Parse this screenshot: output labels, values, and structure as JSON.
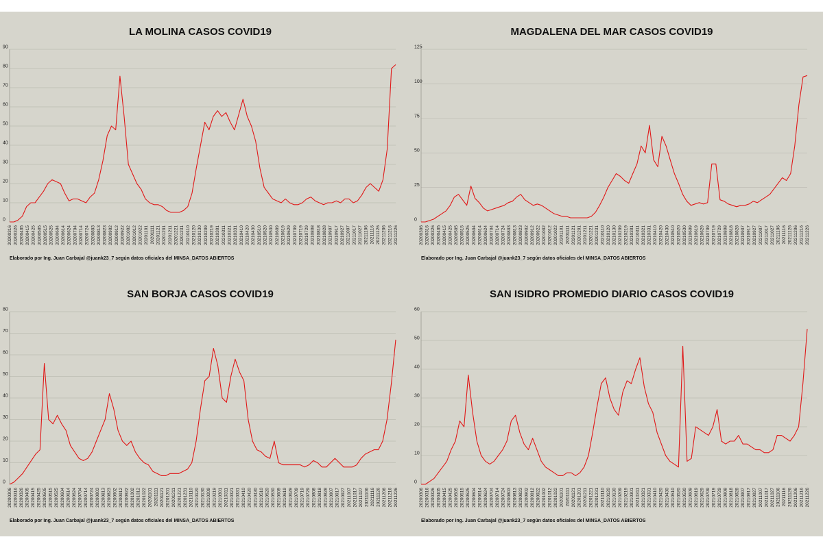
{
  "colors": {
    "background": "#d6d5cc",
    "line": "#e01818",
    "grid": "#bdbcb3"
  },
  "x_labels": [
    "20200306",
    "20200316",
    "20200326",
    "20200405",
    "20200415",
    "20200425",
    "20200505",
    "20200515",
    "20200525",
    "20200604",
    "20200614",
    "20200624",
    "20200704",
    "20200714",
    "20200724",
    "20200803",
    "20200813",
    "20200823",
    "20200902",
    "20200912",
    "20200922",
    "20201002",
    "20201012",
    "20201022",
    "20201101",
    "20201111",
    "20201121",
    "20201201",
    "20201211",
    "20201221",
    "20201231",
    "20210110",
    "20210120",
    "20210130",
    "20210209",
    "20210219",
    "20210301",
    "20210311",
    "20210321",
    "20210331",
    "20210410",
    "20210420",
    "20210430",
    "20210510",
    "20210520",
    "20210530",
    "20210609",
    "20210619",
    "20210629",
    "20210709",
    "20210719",
    "20210729",
    "20210808",
    "20210818",
    "20210828",
    "20210907",
    "20210917",
    "20210927",
    "20211007",
    "20211017",
    "20211027",
    "20211106",
    "20211116",
    "20211126",
    "20211206",
    "20211216",
    "20211226"
  ],
  "credit": "Elaborado por Ing. Juan Carbajal @juank23_7 según datos oficiales del MINSA_DATOS ABIERTOS",
  "chart_data": [
    {
      "type": "line",
      "title": "LA MOLINA CASOS COVID19",
      "ylim": [
        0,
        90
      ],
      "yticks": [
        0,
        10,
        20,
        30,
        40,
        50,
        60,
        70,
        80,
        90
      ],
      "grid": true,
      "x_labels_shown": [
        "20200316",
        "20200326",
        "20200405",
        "20200415",
        "20200425",
        "20200505",
        "20200515",
        "20200525",
        "20200604",
        "20200614",
        "20200624",
        "20200704",
        "20200714",
        "20200724",
        "20200803",
        "20200813",
        "20200823",
        "20200902",
        "20200912",
        "20200922",
        "20201002",
        "20201012",
        "20201022",
        "20201101",
        "20201111",
        "20201121",
        "20201201",
        "20201211",
        "20201221",
        "20201231",
        "20210110",
        "20210120",
        "20210130",
        "20210209",
        "20210219",
        "20210301",
        "20210311",
        "20210321",
        "20210331",
        "20210410",
        "20210420",
        "20210430",
        "20210510",
        "20210520",
        "20210530",
        "20210609",
        "20210619",
        "20210629",
        "20210709",
        "20210719",
        "20210729",
        "20210808",
        "20210818",
        "20210828",
        "20210907",
        "20210917",
        "20210927",
        "20211007",
        "20211017",
        "20211027",
        "20211106",
        "20211116",
        "20211126",
        "20211206",
        "20211216",
        "20211226"
      ],
      "series": [
        {
          "values": [
            0,
            0,
            1,
            3,
            8,
            10,
            10,
            13,
            16,
            20,
            22,
            21,
            20,
            15,
            11,
            12,
            12,
            11,
            10,
            13,
            15,
            22,
            32,
            45,
            50,
            48,
            76,
            55,
            30,
            25,
            20,
            17,
            12,
            10,
            9,
            9,
            8,
            6,
            5,
            5,
            5,
            6,
            8,
            15,
            28,
            40,
            52,
            48,
            55,
            58,
            55,
            57,
            52,
            48,
            56,
            64,
            55,
            50,
            42,
            28,
            18,
            15,
            12,
            11,
            10,
            12,
            10,
            9,
            9,
            10,
            12,
            13,
            11,
            10,
            9,
            10,
            10,
            11,
            10,
            12,
            12,
            10,
            11,
            14,
            18,
            20,
            18,
            16,
            22,
            38,
            80,
            82
          ]
        }
      ]
    },
    {
      "type": "line",
      "title": "MAGDALENA DEL MAR CASOS COVID19",
      "ylim": [
        0,
        125
      ],
      "yticks": [
        0,
        25,
        50,
        75,
        100,
        125
      ],
      "grid": true,
      "x_labels_shown": [
        "20200306",
        "20200316",
        "20200326",
        "20200405",
        "20200415",
        "20200425",
        "20200505",
        "20200515",
        "20200525",
        "20200604",
        "20200614",
        "20200624",
        "20200704",
        "20200714",
        "20200724",
        "20200803",
        "20200813",
        "20200823",
        "20200902",
        "20200912",
        "20200922",
        "20201002",
        "20201012",
        "20201022",
        "20201101",
        "20201111",
        "20201121",
        "20201201",
        "20201211",
        "20201221",
        "20201231",
        "20210110",
        "20210120",
        "20210130",
        "20210209",
        "20210219",
        "20210301",
        "20210311",
        "20210321",
        "20210331",
        "20210410",
        "20210420",
        "20210430",
        "20210510",
        "20210520",
        "20210530",
        "20210609",
        "20210619",
        "20210629",
        "20210709",
        "20210719",
        "20210729",
        "20210808",
        "20210818",
        "20210828",
        "20210907",
        "20210917",
        "20210927",
        "20211007",
        "20211017",
        "20211027",
        "20211106",
        "20211116",
        "20211126",
        "20211206",
        "20211216",
        "20211226"
      ],
      "series": [
        {
          "values": [
            0,
            0,
            1,
            2,
            4,
            6,
            8,
            12,
            18,
            20,
            16,
            12,
            26,
            17,
            14,
            10,
            8,
            9,
            10,
            11,
            12,
            14,
            15,
            18,
            20,
            16,
            14,
            12,
            13,
            12,
            10,
            8,
            6,
            5,
            4,
            4,
            3,
            3,
            3,
            3,
            3,
            4,
            7,
            12,
            18,
            25,
            30,
            35,
            33,
            30,
            28,
            35,
            42,
            55,
            50,
            70,
            45,
            40,
            62,
            55,
            45,
            35,
            28,
            20,
            15,
            12,
            13,
            14,
            13,
            14,
            42,
            42,
            16,
            15,
            13,
            12,
            11,
            12,
            12,
            13,
            15,
            14,
            16,
            18,
            20,
            24,
            28,
            32,
            30,
            35,
            55,
            85,
            105,
            106
          ]
        }
      ]
    },
    {
      "type": "line",
      "title": "SAN BORJA CASOS COVID19",
      "ylim": [
        0,
        80
      ],
      "yticks": [
        0,
        10,
        20,
        30,
        40,
        50,
        60,
        70,
        80
      ],
      "grid": true,
      "x_labels_shown": [
        "20200306",
        "20200316",
        "20200326",
        "20200405",
        "20200415",
        "20200425",
        "20200505",
        "20200515",
        "20200525",
        "20200604",
        "20200614",
        "20200624",
        "20200704",
        "20200714",
        "20200724",
        "20200803",
        "20200813",
        "20200823",
        "20200902",
        "20200912",
        "20200922",
        "20201002",
        "20201012",
        "20201022",
        "20201101",
        "20201111",
        "20201121",
        "20201201",
        "20201211",
        "20201221",
        "20201231",
        "20210110",
        "20210120",
        "20210130",
        "20210209",
        "20210219",
        "20210301",
        "20210311",
        "20210321",
        "20210331",
        "20210410",
        "20210420",
        "20210430",
        "20210510",
        "20210520",
        "20210530",
        "20210609",
        "20210619",
        "20210629",
        "20210709",
        "20210719",
        "20210729",
        "20210808",
        "20210818",
        "20210828",
        "20210907",
        "20210917",
        "20210927",
        "20211007",
        "20211017",
        "20211027",
        "20211106",
        "20211116",
        "20211126",
        "20211206",
        "20211216",
        "20211226"
      ],
      "series": [
        {
          "values": [
            0,
            1,
            3,
            5,
            8,
            11,
            14,
            16,
            56,
            30,
            28,
            32,
            28,
            25,
            18,
            15,
            12,
            11,
            12,
            15,
            20,
            25,
            30,
            42,
            35,
            25,
            20,
            18,
            20,
            15,
            12,
            10,
            9,
            6,
            5,
            4,
            4,
            5,
            5,
            5,
            6,
            7,
            10,
            20,
            35,
            48,
            50,
            63,
            55,
            40,
            38,
            50,
            58,
            52,
            48,
            30,
            20,
            16,
            15,
            13,
            12,
            20,
            10,
            9,
            9,
            9,
            9,
            9,
            8,
            9,
            11,
            10,
            8,
            8,
            10,
            12,
            10,
            8,
            8,
            8,
            9,
            12,
            14,
            15,
            16,
            16,
            20,
            30,
            47,
            67
          ]
        }
      ]
    },
    {
      "type": "line",
      "title": "SAN ISIDRO PROMEDIO DIARIO CASOS COVID19",
      "ylim": [
        0,
        60
      ],
      "yticks": [
        0,
        10,
        20,
        30,
        40,
        50,
        60
      ],
      "grid": true,
      "x_labels_shown": [
        "20200306",
        "20200316",
        "20200326",
        "20200405",
        "20200415",
        "20200425",
        "20200505",
        "20200515",
        "20200525",
        "20200604",
        "20200614",
        "20200624",
        "20200704",
        "20200714",
        "20200724",
        "20200803",
        "20200813",
        "20200823",
        "20200902",
        "20200912",
        "20200922",
        "20201002",
        "20201012",
        "20201022",
        "20201101",
        "20201111",
        "20201121",
        "20201201",
        "20201211",
        "20201221",
        "20201231",
        "20210110",
        "20210120",
        "20210130",
        "20210209",
        "20210219",
        "20210301",
        "20210311",
        "20210321",
        "20210331",
        "20210410",
        "20210420",
        "20210430",
        "20210510",
        "20210520",
        "20210530",
        "20210609",
        "20210619",
        "20210629",
        "20210709",
        "20210719",
        "20210729",
        "20210808",
        "20210818",
        "20210828",
        "20210907",
        "20210917",
        "20210927",
        "20211007",
        "20211017",
        "20211027",
        "20211106",
        "20211116",
        "20211126",
        "20211206",
        "20211216",
        "20211226"
      ],
      "series": [
        {
          "values": [
            0,
            0,
            1,
            2,
            4,
            6,
            8,
            12,
            15,
            22,
            20,
            38,
            25,
            15,
            10,
            8,
            7,
            8,
            10,
            12,
            15,
            22,
            24,
            18,
            14,
            12,
            16,
            12,
            8,
            6,
            5,
            4,
            3,
            3,
            4,
            4,
            3,
            4,
            6,
            10,
            18,
            27,
            35,
            37,
            30,
            26,
            24,
            32,
            36,
            35,
            40,
            44,
            34,
            28,
            25,
            18,
            14,
            10,
            8,
            7,
            6,
            48,
            8,
            9,
            20,
            19,
            18,
            17,
            20,
            26,
            15,
            14,
            15,
            15,
            17,
            14,
            14,
            13,
            12,
            12,
            11,
            11,
            12,
            17,
            17,
            16,
            15,
            17,
            20,
            35,
            54
          ]
        }
      ]
    }
  ]
}
